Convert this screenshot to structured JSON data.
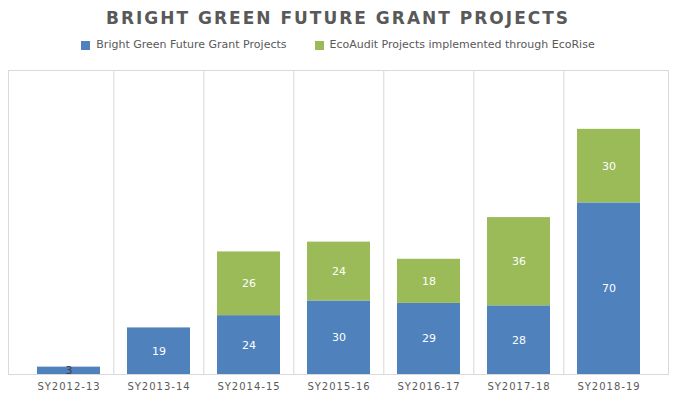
{
  "chart_data": {
    "type": "bar",
    "title": "BRIGHT GREEN FUTURE GRANT PROJECTS",
    "categories": [
      "SY2012-13",
      "SY2013-14",
      "SY2014-15",
      "SY2015-16",
      "SY2016-17",
      "SY2017-18",
      "SY2018-19"
    ],
    "series": [
      {
        "name": "Bright Green Future Grant Projects",
        "color": "#4f81bd",
        "values": [
          3,
          19,
          24,
          30,
          29,
          28,
          70
        ]
      },
      {
        "name": "EcoAudit Projects implemented through EcoRise",
        "color": "#9bbb59",
        "values": [
          null,
          null,
          26,
          24,
          18,
          36,
          30
        ]
      }
    ],
    "ylim": [
      0,
      124
    ],
    "stacked": true,
    "data_labels": true,
    "tick_labels": "x",
    "legend": "top"
  }
}
